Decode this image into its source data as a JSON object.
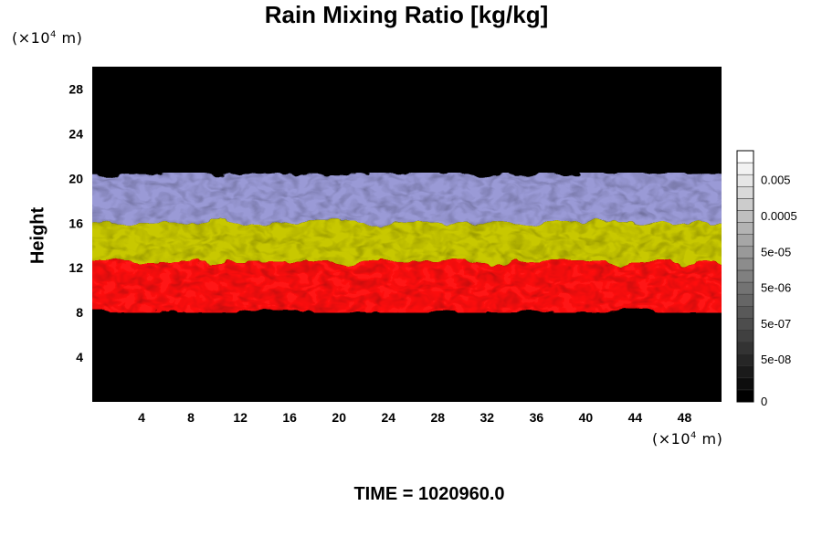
{
  "title": "Rain Mixing Ratio [kg/kg]",
  "y_unit": {
    "prefix": "(×10",
    "exp": "4",
    "suffix": " m)"
  },
  "x_unit": {
    "prefix": "(×10",
    "exp": "4",
    "suffix": " m)"
  },
  "ylabel": "Height",
  "time_label": "TIME = 1020960.0",
  "chart_data": {
    "type": "heatmap",
    "title": "Rain Mixing Ratio [kg/kg]",
    "xlabel": "",
    "ylabel": "Height",
    "x_ticks": [
      "4",
      "8",
      "12",
      "16",
      "20",
      "24",
      "28",
      "32",
      "36",
      "40",
      "44",
      "48"
    ],
    "y_ticks": [
      "4",
      "8",
      "12",
      "16",
      "20",
      "24",
      "28"
    ],
    "xlim": [
      0,
      51
    ],
    "ylim": [
      0,
      30
    ],
    "background_color": "#000000",
    "layers": [
      {
        "color": "#ff1414",
        "y_range": [
          8,
          12.5
        ]
      },
      {
        "color": "#c8c800",
        "y_range": [
          12.5,
          16
        ]
      },
      {
        "color": "#9a9ad6",
        "y_range": [
          16,
          20.5
        ]
      }
    ],
    "colorbar": {
      "tick_labels": [
        "0",
        "5e-08",
        "5e-07",
        "5e-06",
        "5e-05",
        "0.0005",
        "0.005"
      ],
      "levels": 21,
      "color_low": "#000000",
      "color_high": "#ffffff"
    }
  }
}
